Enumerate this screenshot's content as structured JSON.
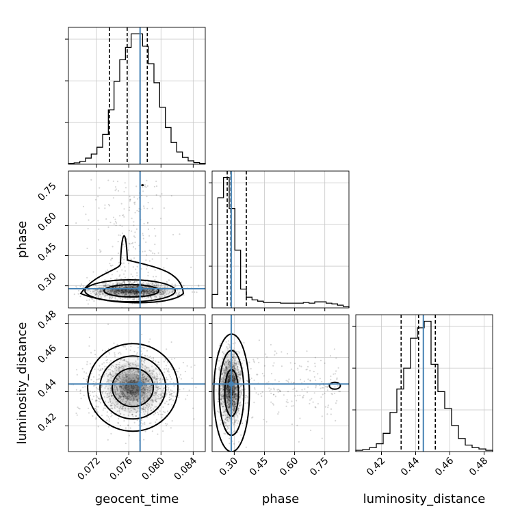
{
  "chart_data": {
    "type": "corner",
    "parameters": [
      {
        "name": "geocent_time",
        "range": [
          0.0685,
          0.0855
        ],
        "ticks": [
          0.072,
          0.076,
          0.08,
          0.084
        ],
        "tick_labels": [
          "0.072",
          "0.076",
          "0.080",
          "0.084"
        ],
        "injection": 0.0774,
        "quantiles": [
          0.0736,
          0.0758,
          0.0783
        ],
        "histogram": [
          0.006,
          0.01,
          0.02,
          0.045,
          0.075,
          0.125,
          0.22,
          0.4,
          0.61,
          0.77,
          0.86,
          0.96,
          0.96,
          0.87,
          0.74,
          0.6,
          0.42,
          0.27,
          0.16,
          0.09,
          0.05,
          0.025,
          0.012,
          0.006
        ]
      },
      {
        "name": "phase",
        "range": [
          0.19,
          0.87
        ],
        "ticks": [
          0.3,
          0.45,
          0.6,
          0.75
        ],
        "tick_labels": [
          "0.30",
          "0.45",
          "0.60",
          "0.75"
        ],
        "injection": 0.285,
        "quantiles": [
          0.265,
          0.283,
          0.36
        ],
        "histogram": [
          0.1,
          0.82,
          0.97,
          0.74,
          0.43,
          0.14,
          0.08,
          0.06,
          0.05,
          0.04,
          0.04,
          0.04,
          0.035,
          0.035,
          0.035,
          0.035,
          0.04,
          0.035,
          0.045,
          0.045,
          0.035,
          0.03,
          0.02,
          0.01
        ]
      },
      {
        "name": "luminosity_distance",
        "range": [
          0.405,
          0.485
        ],
        "ticks": [
          0.42,
          0.44,
          0.46,
          0.48
        ],
        "tick_labels": [
          "0.42",
          "0.44",
          "0.46",
          "0.48"
        ],
        "injection": 0.4445,
        "quantiles": [
          0.4315,
          0.4417,
          0.4515
        ],
        "histogram": [
          0.01,
          0.015,
          0.03,
          0.06,
          0.14,
          0.3,
          0.48,
          0.64,
          0.87,
          0.95,
          1.0,
          0.67,
          0.46,
          0.33,
          0.2,
          0.1,
          0.05,
          0.03,
          0.02,
          0.01
        ]
      }
    ]
  }
}
